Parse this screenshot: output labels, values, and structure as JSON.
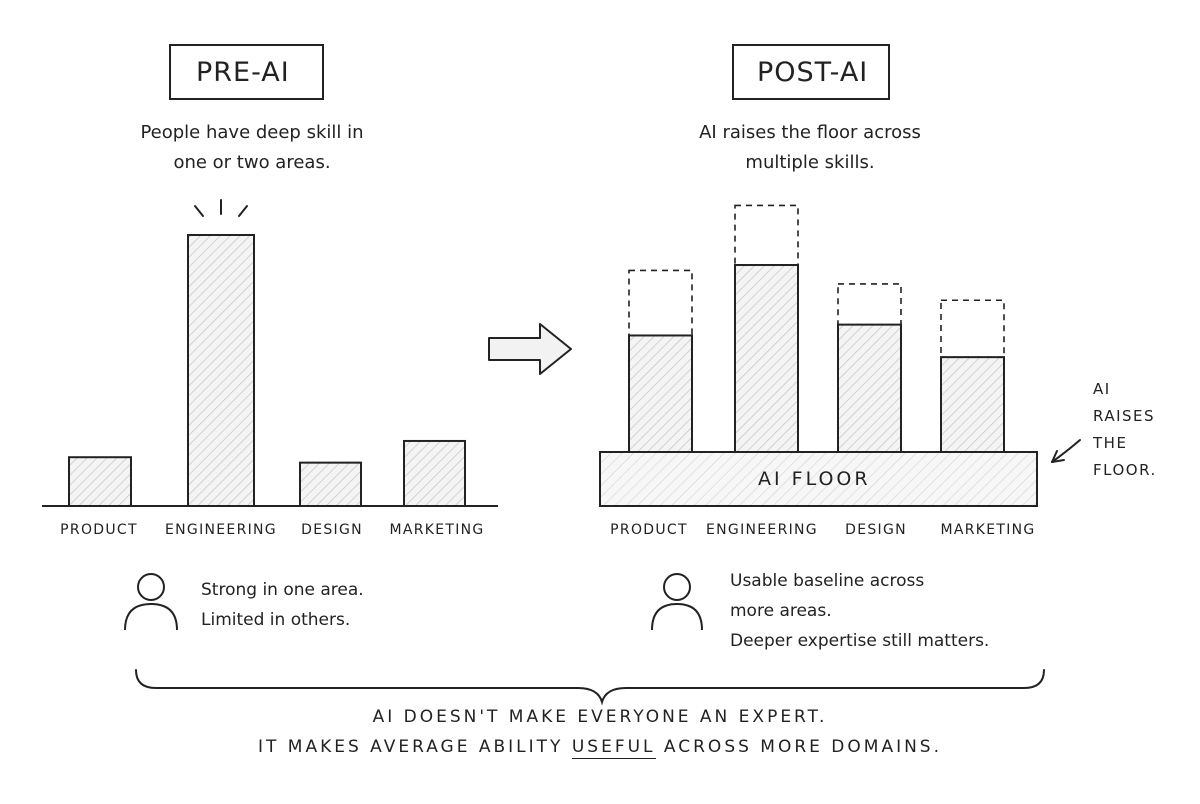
{
  "pre": {
    "title": "PRE-AI",
    "caption_line1": "People have deep skill in",
    "caption_line2": "one or two areas.",
    "note_line1": "Strong in one area.",
    "note_line2": "Limited in others."
  },
  "post": {
    "title": "POST-AI",
    "caption_line1": "AI raises the floor across",
    "caption_line2": "multiple skills.",
    "floor_label": "AI FLOOR",
    "side_label": [
      "AI",
      "RAISES",
      "THE",
      "FLOOR."
    ],
    "note_line1": "Usable baseline across",
    "note_line2": "more areas.",
    "note_line3": "Deeper expertise still matters."
  },
  "conclusion": {
    "line1": "AI DOESN'T MAKE EVERYONE AN EXPERT.",
    "line2_before": "IT MAKES AVERAGE ABILITY ",
    "line2_emphasis": "USEFUL",
    "line2_after": " ACROSS MORE DOMAINS."
  },
  "chart_data": [
    {
      "type": "bar",
      "title": "PRE-AI",
      "categories": [
        "PRODUCT",
        "ENGINEERING",
        "DESIGN",
        "MARKETING"
      ],
      "values": [
        18,
        100,
        16,
        24
      ],
      "highlight": "ENGINEERING"
    },
    {
      "type": "bar",
      "title": "POST-AI",
      "categories": [
        "PRODUCT",
        "ENGINEERING",
        "DESIGN",
        "MARKETING"
      ],
      "floor": 18,
      "values": [
        61,
        87,
        65,
        53
      ],
      "ceiling": [
        85,
        109,
        80,
        74
      ]
    }
  ],
  "colors": {
    "ink": "#222222",
    "hatch": "#bdbdbd",
    "fill": "#f3f3f3"
  }
}
